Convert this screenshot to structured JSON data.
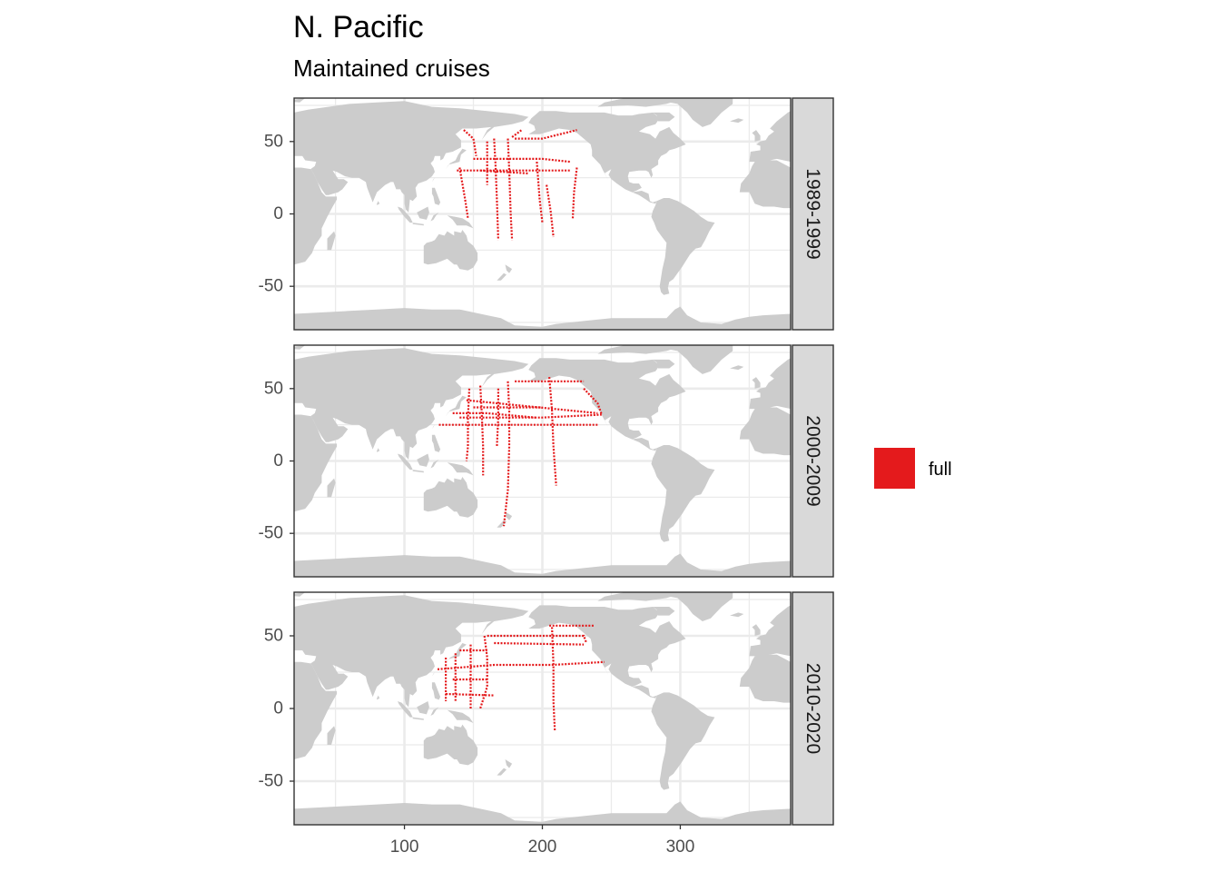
{
  "title": "N. Pacific",
  "subtitle": "Maintained cruises",
  "colors": {
    "land": "#cccccc",
    "grid": "#ebebeb",
    "panel_border": "#333333",
    "strip_fill": "#d9d9d9",
    "track": "#e41a1c",
    "tick_text": "#4d4d4d"
  },
  "legend": {
    "label": "full",
    "color": "#e41a1c"
  },
  "chart_data": {
    "type": "map",
    "x_ticks": [
      100,
      200,
      300
    ],
    "y_ticks": [
      50,
      0,
      -50
    ],
    "y_tick_labels": [
      "50",
      "0",
      "-50"
    ],
    "xlim": [
      20,
      380
    ],
    "ylim": [
      -80,
      80
    ],
    "projection": "longitude 20–380 (Pacific-centred), latitude -80–80",
    "facets": [
      {
        "label": "1989-1999",
        "tracks": [
          [
            [
              143,
              58
            ],
            [
              150,
              52
            ],
            [
              152,
              40
            ]
          ],
          [
            [
              140,
              32
            ],
            [
              144,
              10
            ],
            [
              146,
              -3
            ]
          ],
          [
            [
              138,
              30
            ],
            [
              220,
              30
            ]
          ],
          [
            [
              165,
              52
            ],
            [
              166,
              35
            ],
            [
              167,
              10
            ],
            [
              168,
              -18
            ]
          ],
          [
            [
              160,
              50
            ],
            [
              160,
              20
            ]
          ],
          [
            [
              175,
              52
            ],
            [
              176,
              30
            ],
            [
              177,
              0
            ],
            [
              178,
              -18
            ]
          ],
          [
            [
              178,
              53
            ],
            [
              185,
              58
            ]
          ],
          [
            [
              180,
              52
            ],
            [
              200,
              52
            ],
            [
              225,
              58
            ]
          ],
          [
            [
              196,
              36
            ],
            [
              198,
              10
            ],
            [
              200,
              -6
            ]
          ],
          [
            [
              203,
              20
            ],
            [
              206,
              2
            ],
            [
              208,
              -16
            ]
          ],
          [
            [
              225,
              32
            ],
            [
              223,
              15
            ],
            [
              222,
              -4
            ]
          ],
          [
            [
              150,
              38
            ],
            [
              200,
              38
            ],
            [
              220,
              36
            ]
          ],
          [
            [
              155,
              30
            ],
            [
              190,
              28
            ]
          ]
        ]
      },
      {
        "label": "2000-2009",
        "tracks": [
          [
            [
              125,
              25
            ],
            [
              165,
              25
            ],
            [
              205,
              25
            ],
            [
              240,
              25
            ]
          ],
          [
            [
              145,
              42
            ],
            [
              240,
              33
            ]
          ],
          [
            [
              140,
              30
            ],
            [
              165,
              30
            ],
            [
              200,
              30
            ],
            [
              243,
              32
            ]
          ],
          [
            [
              147,
              50
            ],
            [
              146,
              30
            ],
            [
              146,
              10
            ],
            [
              145,
              0
            ]
          ],
          [
            [
              155,
              52
            ],
            [
              156,
              35
            ],
            [
              157,
              10
            ],
            [
              157,
              -10
            ]
          ],
          [
            [
              168,
              50
            ],
            [
              168,
              30
            ],
            [
              167,
              10
            ]
          ],
          [
            [
              175,
              55
            ],
            [
              176,
              35
            ],
            [
              176,
              10
            ],
            [
              175,
              -20
            ],
            [
              172,
              -45
            ]
          ],
          [
            [
              180,
              55
            ],
            [
              200,
              55
            ],
            [
              230,
              55
            ]
          ],
          [
            [
              205,
              58
            ],
            [
              207,
              35
            ],
            [
              208,
              10
            ],
            [
              210,
              -17
            ]
          ],
          [
            [
              230,
              50
            ],
            [
              240,
              40
            ],
            [
              243,
              32
            ]
          ],
          [
            [
              135,
              33
            ],
            [
              160,
              33
            ],
            [
              195,
              30
            ]
          ],
          [
            [
              150,
              37
            ],
            [
              200,
              37
            ]
          ]
        ]
      },
      {
        "label": "2010-2020",
        "tracks": [
          [
            [
              124,
              27
            ],
            [
              165,
              30
            ],
            [
              207,
              30
            ],
            [
              245,
              32
            ]
          ],
          [
            [
              130,
              35
            ],
            [
              130,
              20
            ],
            [
              130,
              5
            ]
          ],
          [
            [
              137,
              38
            ],
            [
              137,
              20
            ],
            [
              137,
              5
            ]
          ],
          [
            [
              148,
              44
            ],
            [
              148,
              25
            ],
            [
              148,
              0
            ]
          ],
          [
            [
              158,
              50
            ],
            [
              160,
              35
            ],
            [
              160,
              15
            ],
            [
              155,
              0
            ]
          ],
          [
            [
              160,
              50
            ],
            [
              230,
              50
            ],
            [
              232,
              45
            ]
          ],
          [
            [
              165,
              45
            ],
            [
              230,
              44
            ]
          ],
          [
            [
              205,
              57
            ],
            [
              238,
              57
            ]
          ],
          [
            [
              207,
              56
            ],
            [
              208,
              30
            ],
            [
              208,
              5
            ],
            [
              209,
              -15
            ]
          ],
          [
            [
              130,
              10
            ],
            [
              165,
              9
            ]
          ],
          [
            [
              135,
              20
            ],
            [
              160,
              20
            ]
          ],
          [
            [
              140,
              40
            ],
            [
              160,
              40
            ]
          ]
        ]
      }
    ]
  }
}
